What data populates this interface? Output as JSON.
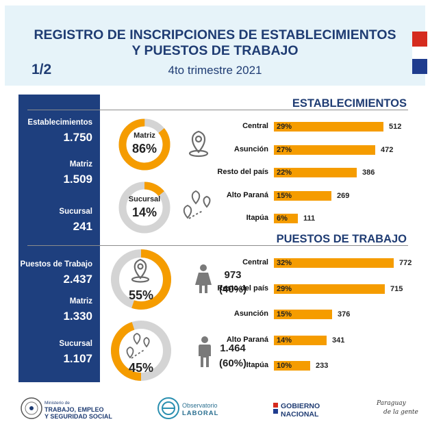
{
  "header": {
    "title_line1": "REGISTRO DE INSCRIPCIONES DE ESTABLECIMIENTOS",
    "title_line2": "Y PUESTOS DE TRABAJO",
    "subtitle": "4to trimestre 2021",
    "page": "1/2"
  },
  "sidebar": {
    "establecimientos_label": "Establecimientos",
    "establecimientos_value": "1.750",
    "matriz1_label": "Matriz",
    "matriz1_value": "1.509",
    "sucursal1_label": "Sucursal",
    "sucursal1_value": "241",
    "puestos_label": "Puestos de Trabajo",
    "puestos_value": "2.437",
    "matriz2_label": "Matriz",
    "matriz2_value": "1.330",
    "sucursal2_label": "Sucursal",
    "sucursal2_value": "1.107"
  },
  "donuts": {
    "matriz": {
      "label": "Matriz",
      "pct_text": "86%",
      "fraction": 0.86
    },
    "sucursal": {
      "label": "Sucursal",
      "pct_text": "14%",
      "fraction": 0.14
    },
    "puestos_matriz": {
      "pct_text": "55%",
      "fraction": 0.55
    },
    "puestos_sucursal": {
      "pct_text": "45%",
      "fraction": 0.45
    }
  },
  "gender": {
    "female_value": "973",
    "female_pct": "(40%)",
    "male_value": "1.464",
    "male_pct": "(60%)"
  },
  "colors": {
    "accent": "#f59c00",
    "navy": "#1e3f7e",
    "gray": "#d4d4d4"
  },
  "chart_data": [
    {
      "type": "bar",
      "title": "ESTABLECIMIENTOS",
      "categories": [
        "Central",
        "Asunción",
        "Resto del país",
        "Alto Paraná",
        "Itapúa"
      ],
      "values": [
        512,
        472,
        386,
        269,
        111
      ],
      "percents": [
        "29%",
        "27%",
        "22%",
        "15%",
        "6%"
      ],
      "value_labels": [
        "512",
        "472",
        "386",
        "269",
        "111"
      ],
      "max": 512
    },
    {
      "type": "bar",
      "title": "PUESTOS DE TRABAJO",
      "categories": [
        "Central",
        "Resto del país",
        "Asunción",
        "Alto Paraná",
        "Itapúa"
      ],
      "values": [
        772,
        715,
        376,
        341,
        233
      ],
      "percents": [
        "32%",
        "29%",
        "15%",
        "14%",
        "10%"
      ],
      "value_labels": [
        "772",
        "715",
        "376",
        "341",
        "233"
      ],
      "max": 772
    }
  ],
  "footer": {
    "ministerio_small": "Ministerio de",
    "ministerio_line1": "TRABAJO, EMPLEO",
    "ministerio_line2": "Y SEGURIDAD SOCIAL",
    "observatorio_line1": "Observatorio",
    "observatorio_line2": "LABORAL",
    "gobierno_line1": "GOBIERNO",
    "gobierno_line2": "NACIONAL",
    "slogan_line1": "Paraguay",
    "slogan_line2": "de la gente"
  }
}
